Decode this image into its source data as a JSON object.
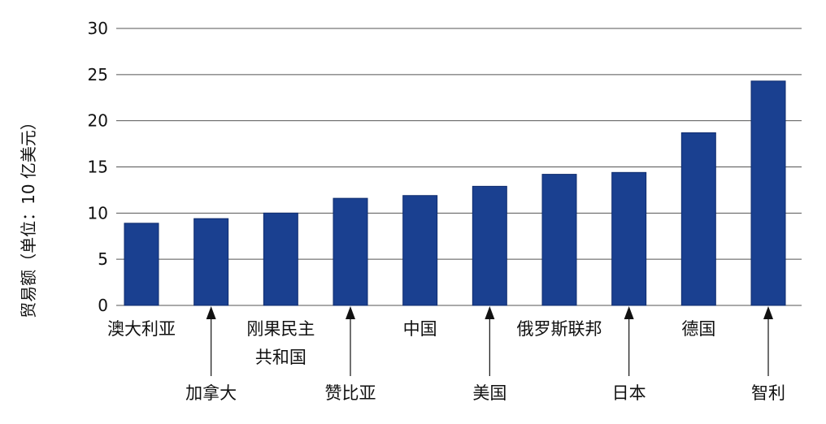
{
  "chart_data": {
    "type": "bar",
    "title": "",
    "xlabel": "",
    "ylabel": "贸易额（单位：10 亿美元）",
    "ylim": [
      0,
      30
    ],
    "yticks": [
      0,
      5,
      10,
      15,
      20,
      25,
      30
    ],
    "grid": true,
    "categories": [
      {
        "lines": [
          "澳大利亚"
        ],
        "placement": "top"
      },
      {
        "lines": [
          "加拿大"
        ],
        "placement": "bottom"
      },
      {
        "lines": [
          "刚果民主",
          "共和国"
        ],
        "placement": "top"
      },
      {
        "lines": [
          "赞比亚"
        ],
        "placement": "bottom"
      },
      {
        "lines": [
          "中国"
        ],
        "placement": "top"
      },
      {
        "lines": [
          "美国"
        ],
        "placement": "bottom"
      },
      {
        "lines": [
          "俄罗斯联邦"
        ],
        "placement": "top"
      },
      {
        "lines": [
          "日本"
        ],
        "placement": "bottom"
      },
      {
        "lines": [
          "德国"
        ],
        "placement": "top"
      },
      {
        "lines": [
          "智利"
        ],
        "placement": "bottom"
      }
    ],
    "values": [
      8.9,
      9.4,
      10.0,
      11.6,
      11.9,
      12.9,
      14.2,
      14.4,
      18.7,
      24.3
    ],
    "bar_color": "#1a4090"
  }
}
